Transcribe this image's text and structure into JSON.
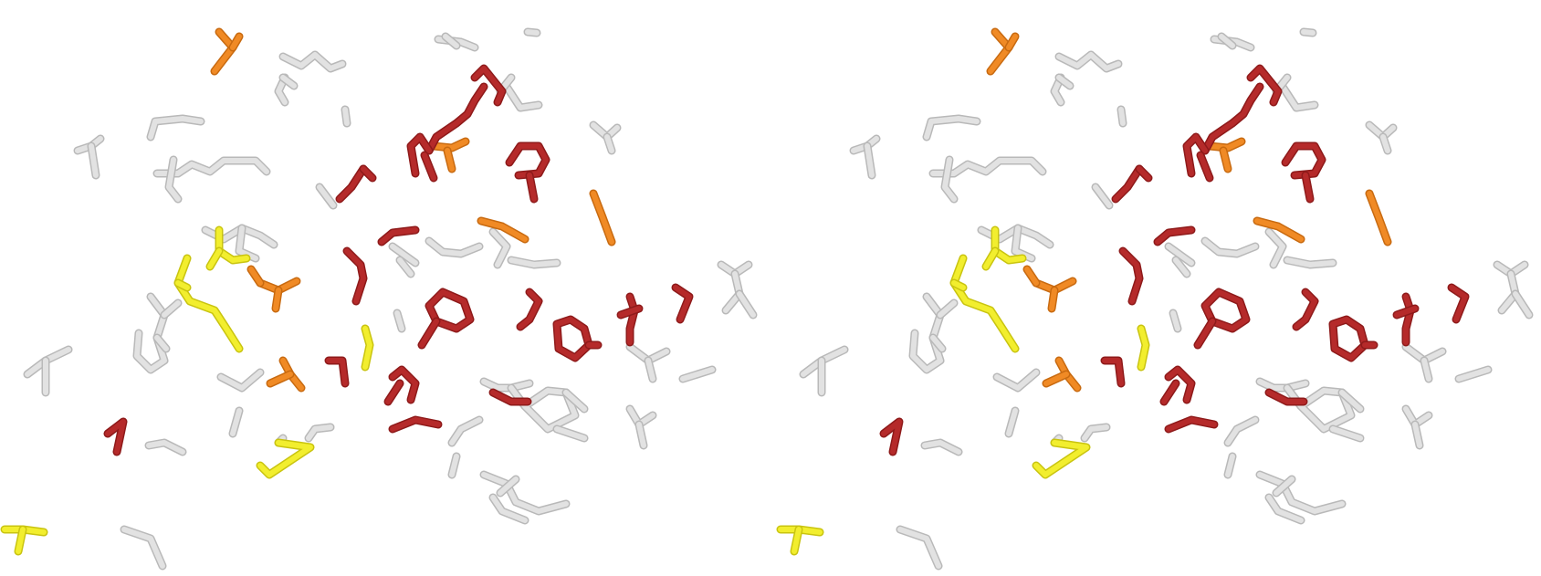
{
  "image": {
    "kind": "stereo-pair molecular stick rendering",
    "background": "#ffffff",
    "views": [
      "left-eye",
      "right-eye"
    ]
  },
  "colors": {
    "white": "#e2e2e2",
    "white_shade": "#b9b9b9",
    "yellow": "#f2ee2e",
    "yellow_shade": "#c9c410",
    "orange": "#f08a25",
    "orange_shade": "#c86a10",
    "red": "#b52a2a",
    "red_dark": "#8e1a1a",
    "red_light": "#c45050"
  },
  "legend_note": "",
  "title": ""
}
